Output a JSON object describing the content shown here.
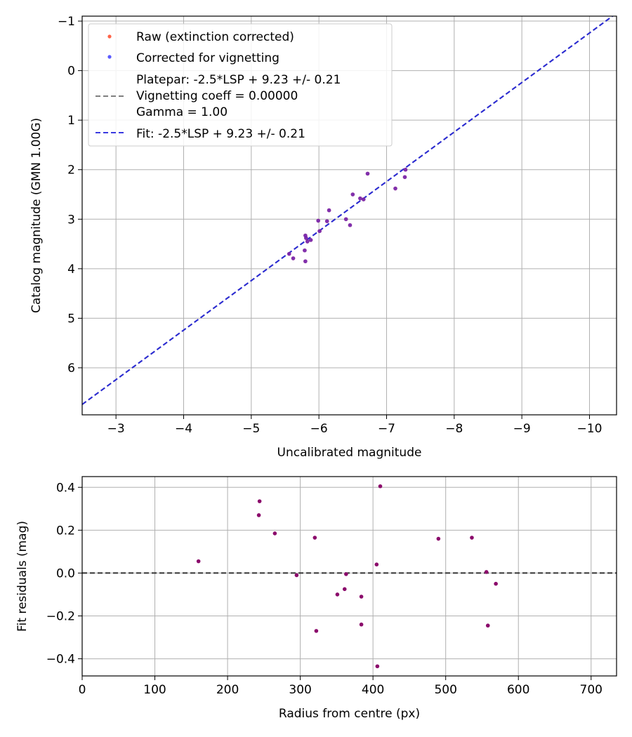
{
  "chart_data": [
    {
      "type": "scatter",
      "xlabel": "Uncalibrated magnitude",
      "ylabel": "Catalog magnitude (GMN 1.00G)",
      "xlim": [
        -2.5,
        -10.4
      ],
      "ylim": [
        -1.1,
        6.95
      ],
      "x_inverted": true,
      "y_inverted": true,
      "grid": true,
      "legend_position": "top-left",
      "xticks": [
        -3,
        -4,
        -5,
        -6,
        -7,
        -8,
        -9,
        -10
      ],
      "xtick_labels": [
        "−3",
        "−4",
        "−5",
        "−6",
        "−7",
        "−8",
        "−9",
        "−10"
      ],
      "yticks": [
        -1,
        0,
        1,
        2,
        3,
        4,
        5,
        6
      ],
      "ytick_labels": [
        "−1",
        "0",
        "1",
        "2",
        "3",
        "4",
        "5",
        "6"
      ],
      "legend": [
        {
          "label": "Raw (extinction corrected)",
          "kind": "point",
          "color": "#ff6347"
        },
        {
          "label": "Corrected for vignetting",
          "kind": "point",
          "color": "#5b5bff"
        },
        {
          "label": "Platepar: -2.5*LSP + 9.23 +/- 0.21\nVignetting coeff = 0.00000\nGamma = 1.00",
          "kind": "line",
          "color": "#808080"
        },
        {
          "label": "Fit: -2.5*LSP + 9.23 +/- 0.21",
          "kind": "line",
          "color": "#3a3ae0"
        }
      ],
      "lines": [
        {
          "name": "Platepar",
          "color": "#808080",
          "dashed": true,
          "x": [
            -2.5,
            -10.4
          ],
          "y": [
            6.74,
            -1.16
          ]
        },
        {
          "name": "Fit",
          "color": "#2a2ad6",
          "dashed": true,
          "x": [
            -2.5,
            -10.4
          ],
          "y": [
            6.74,
            -1.16
          ]
        }
      ],
      "point_color": "#6a1fb5",
      "series": [
        {
          "name": "Raw (extinction corrected)",
          "x": [
            -7.28,
            -7.27,
            -6.72,
            -7.13,
            -6.5,
            -6.61,
            -6.66,
            -6.15,
            -6.4,
            -6.46,
            -6.12,
            -5.99,
            -6.01,
            -5.8,
            -5.81,
            -5.88,
            -5.83,
            -5.79,
            -5.56,
            -5.62,
            -5.8
          ],
          "y": [
            2.0,
            2.15,
            2.08,
            2.38,
            2.5,
            2.58,
            2.6,
            2.82,
            3.0,
            3.12,
            3.04,
            3.03,
            3.24,
            3.33,
            3.38,
            3.42,
            3.45,
            3.63,
            3.7,
            3.79,
            3.85
          ]
        },
        {
          "name": "Corrected for vignetting",
          "x": [
            -7.28,
            -7.27,
            -6.72,
            -7.13,
            -6.5,
            -6.61,
            -6.66,
            -6.15,
            -6.4,
            -6.46,
            -6.12,
            -5.99,
            -6.01,
            -5.8,
            -5.81,
            -5.88,
            -5.83,
            -5.79,
            -5.56,
            -5.62,
            -5.8
          ],
          "y": [
            2.0,
            2.15,
            2.08,
            2.38,
            2.5,
            2.58,
            2.6,
            2.82,
            3.0,
            3.12,
            3.04,
            3.03,
            3.24,
            3.33,
            3.38,
            3.42,
            3.45,
            3.63,
            3.7,
            3.79,
            3.85
          ]
        }
      ]
    },
    {
      "type": "scatter",
      "xlabel": "Radius from centre (px)",
      "ylabel": "Fit residuals (mag)",
      "xlim": [
        0,
        735
      ],
      "ylim": [
        -0.48,
        0.45
      ],
      "grid": true,
      "xticks": [
        0,
        100,
        200,
        300,
        400,
        500,
        600,
        700
      ],
      "xtick_labels": [
        "0",
        "100",
        "200",
        "300",
        "400",
        "500",
        "600",
        "700"
      ],
      "yticks": [
        -0.4,
        -0.2,
        0.0,
        0.2,
        0.4
      ],
      "ytick_labels": [
        "−0.4",
        "−0.2",
        "0.0",
        "0.2",
        "0.4"
      ],
      "zero_line": {
        "y": 0.0,
        "color": "#333333",
        "dashed": true
      },
      "point_color": "#8b0a6b",
      "series": [
        {
          "name": "residuals",
          "x": [
            160,
            243,
            244,
            265,
            295,
            320,
            322,
            351,
            361,
            363,
            384,
            384,
            405,
            406,
            410,
            490,
            536,
            556,
            558,
            569
          ],
          "y": [
            0.055,
            0.27,
            0.335,
            0.185,
            -0.01,
            0.165,
            -0.27,
            -0.1,
            -0.075,
            -0.005,
            -0.11,
            -0.24,
            0.04,
            -0.435,
            0.405,
            0.16,
            0.165,
            0.005,
            -0.245,
            -0.05
          ]
        }
      ]
    }
  ]
}
